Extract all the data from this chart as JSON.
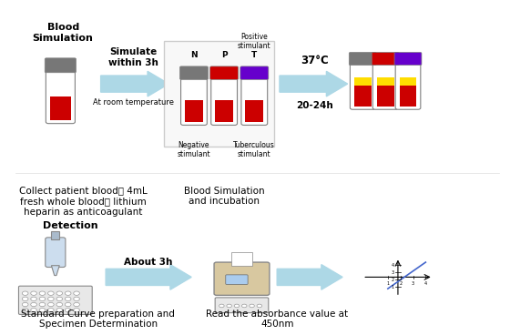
{
  "bg_color": "#ffffff",
  "arrow_color": "#add8e6",
  "text_color": "#000000",
  "blood_sim_title": "Blood\nSimulation",
  "simulate_text": "Simulate\nwithin 3h",
  "at_room_text": "At room temperature",
  "blood_sim_incubation": "Blood Simulation\nand incubation",
  "collect_text": "Collect patient blood： 4mL\nfresh whole blood， lithium\nheparin as anticoagulant",
  "temp_37": "37°C",
  "hours_20_24": "20-24h",
  "positive_stimulant": "Positive\nstimulant",
  "negative_stimulant": "Negative\nstimulant",
  "tuberculous_stimulant": "Tuberculous\nstimulant",
  "detection_text": "Detection",
  "about_3h": "About 3h",
  "standard_curve_text": "Standard Curve preparation and\nSpecimen Determination",
  "read_absorbance_text": "Read the absorbance value at\n450nm"
}
